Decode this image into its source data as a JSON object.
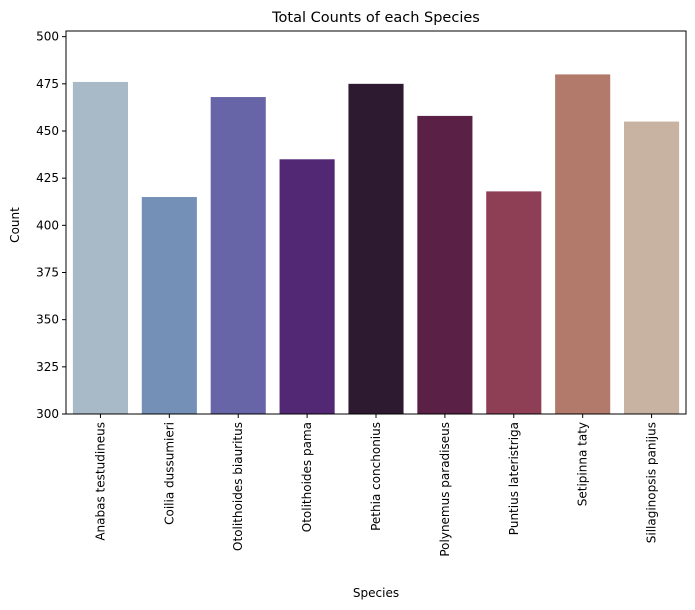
{
  "chart_data": {
    "type": "bar",
    "title": "Total Counts of each Species",
    "xlabel": "Species",
    "ylabel": "Count",
    "ylim": [
      300,
      503
    ],
    "yticks": [
      300,
      325,
      350,
      375,
      400,
      425,
      450,
      475,
      500
    ],
    "categories": [
      "Anabas testudineus",
      "Coilia dussumieri",
      "Otolithoides biauritus",
      "Otolithoides pama",
      "Pethia conchonius",
      "Polynemus paradiseus",
      "Puntius lateristriga",
      "Setipinna taty",
      "Sillaginopsis panijus"
    ],
    "values": [
      476,
      415,
      468,
      435,
      475,
      458,
      418,
      480,
      455
    ],
    "colors": [
      "#a8b9c7",
      "#7590b6",
      "#6864a8",
      "#522874",
      "#2e1a30",
      "#5a2045",
      "#8e3f55",
      "#b27a6a",
      "#c8b3a2"
    ],
    "grid": false,
    "legend": "none"
  }
}
